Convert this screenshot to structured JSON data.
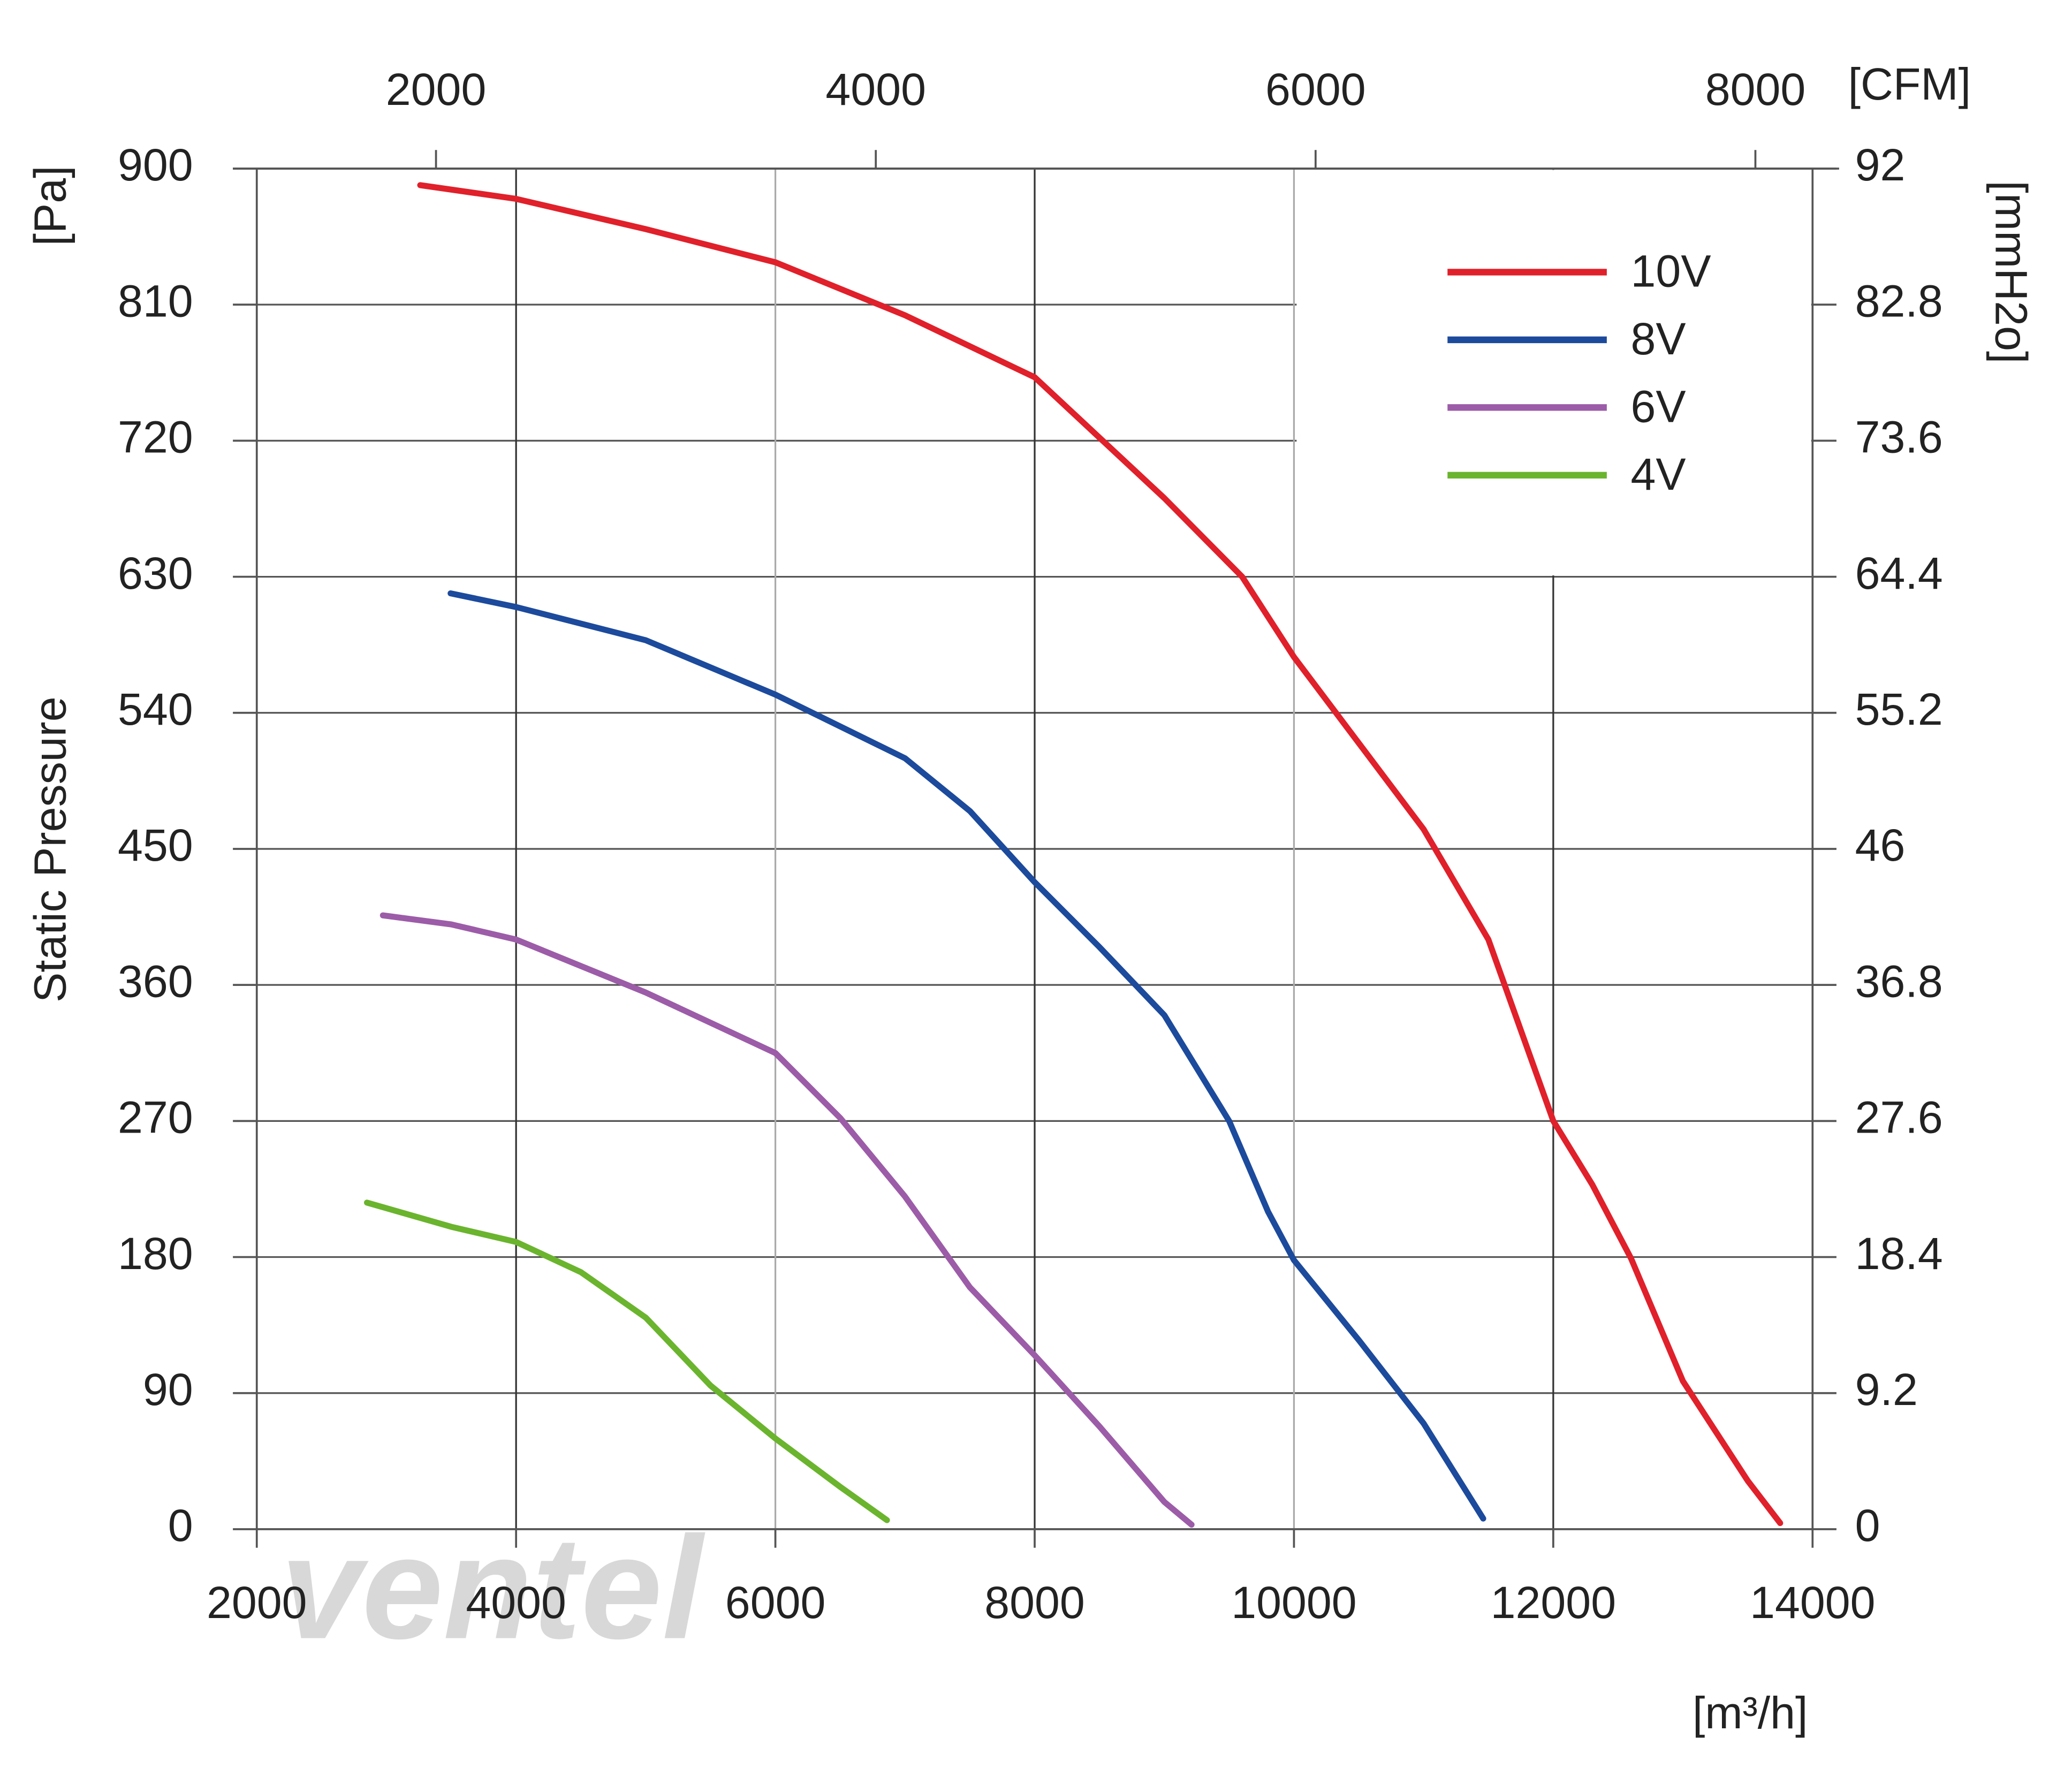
{
  "chart_data": {
    "type": "line",
    "watermark": "ventel",
    "y_axis_title": "Static Pressure",
    "y_unit": "[Pa]",
    "x_unit": "[m³/h]",
    "x2_unit": "[CFM]",
    "y2_unit": "[mmH2o]",
    "xlim": [
      2000,
      14000
    ],
    "xticks": [
      2000,
      4000,
      6000,
      8000,
      10000,
      12000,
      14000
    ],
    "x2lim": [
      1185,
      8260
    ],
    "x2ticks": [
      2000,
      4000,
      6000,
      8000
    ],
    "ylim": [
      0,
      900
    ],
    "yticks": [
      0,
      90,
      180,
      270,
      360,
      450,
      540,
      630,
      720,
      810,
      900
    ],
    "y2lim": [
      0,
      92
    ],
    "y2ticks": [
      0,
      9.2,
      18.4,
      27.6,
      36.8,
      46,
      55.2,
      64.4,
      73.6,
      82.8,
      92
    ],
    "grid": true,
    "legend": "upper right",
    "series": [
      {
        "name": "10V",
        "color": "#e0202a",
        "x": [
          3260,
          4000,
          5000,
          6000,
          7000,
          8000,
          9000,
          9600,
          10000,
          11000,
          11500,
          12000,
          12300,
          12600,
          13000,
          13500,
          13750
        ],
        "values": [
          889,
          880,
          860,
          838,
          803,
          762,
          682,
          630,
          577,
          463,
          390,
          270,
          228,
          179,
          98,
          32,
          4
        ]
      },
      {
        "name": "8V",
        "color": "#1c4a9c",
        "x": [
          3495,
          4000,
          5000,
          6000,
          7000,
          7500,
          8000,
          8500,
          9000,
          9500,
          9800,
          10000,
          10500,
          11000,
          11460
        ],
        "values": [
          619,
          610,
          588,
          552,
          510,
          475,
          428,
          385,
          340,
          270,
          210,
          178,
          125,
          70,
          7
        ]
      },
      {
        "name": "6V",
        "color": "#9c5ca8",
        "x": [
          2973,
          3500,
          4000,
          5000,
          6000,
          6500,
          7000,
          7500,
          8000,
          8500,
          9000,
          9210
        ],
        "values": [
          406,
          400,
          390,
          355,
          315,
          272,
          220,
          160,
          115,
          68,
          18,
          3
        ]
      },
      {
        "name": "4V",
        "color": "#6ab42e",
        "x": [
          2850,
          3500,
          4000,
          4500,
          5000,
          5500,
          6000,
          6500,
          6860
        ],
        "values": [
          216,
          200,
          190,
          170,
          140,
          95,
          60,
          28,
          6
        ]
      }
    ]
  }
}
